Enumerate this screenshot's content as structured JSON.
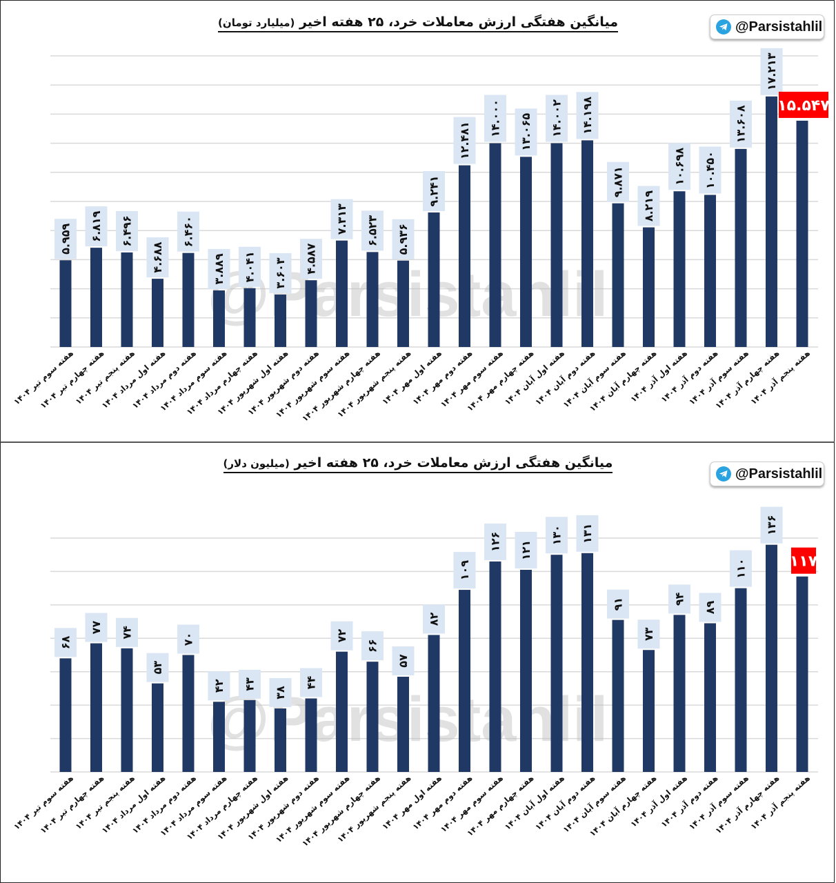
{
  "brand": {
    "handle": "@Parsistahlil",
    "icon": "telegram-icon",
    "bar_color": "#203864",
    "label_bg": "#dae6f3",
    "highlight_color": "#ff0000",
    "grid_color": "#d9d9d9"
  },
  "chart_data": [
    {
      "type": "bar",
      "title": "میانگین هفتگی ارزش معاملات خرد، ۲۵ هفته اخیر",
      "unit": "(میلیارد تومان)",
      "xlabel": "",
      "ylabel": "",
      "ylim": [
        0,
        20
      ],
      "grid_step": 2,
      "grid": true,
      "legend": "none",
      "highlight_last": true,
      "categories": [
        "هفته سوم تیر ۱۴۰۴",
        "هفته چهارم تیر ۱۴۰۴",
        "هفته پنجم تیر ۱۴۰۴",
        "هفته اول مرداد ۱۴۰۴",
        "هفته دوم مرداد ۱۴۰۴",
        "هفته سوم مرداد ۱۴۰۴",
        "هفته چهارم مرداد ۱۴۰۴",
        "هفته اول شهریور ۱۴۰۴",
        "هفته دوم شهریور ۱۴۰۴",
        "هفته سوم شهریور ۱۴۰۴",
        "هفته چهارم شهریور ۱۴۰۴",
        "هفته پنجم شهریور ۱۴۰۴",
        "هفته اول مهر ۱۴۰۴",
        "هفته دوم مهر ۱۴۰۴",
        "هفته سوم مهر ۱۴۰۴",
        "هفته چهارم مهر ۱۴۰۴",
        "هفته اول آبان ۱۴۰۴",
        "هفته دوم آبان ۱۴۰۴",
        "هفته سوم آبان ۱۴۰۴",
        "هفته چهارم آبان ۱۴۰۴",
        "هفته اول آذر ۱۴۰۴",
        "هفته دوم آذر ۱۴۰۴",
        "هفته سوم آذر ۱۴۰۴",
        "هفته چهارم آذر ۱۴۰۴",
        "هفته پنجم آذر ۱۴۰۴"
      ],
      "values": [
        5.959,
        6.819,
        6.496,
        4.688,
        6.46,
        3.889,
        4.041,
        3.603,
        4.587,
        7.313,
        6.523,
        5.936,
        9.241,
        12.481,
        14.0,
        13.065,
        14.002,
        14.198,
        9.871,
        8.219,
        10.698,
        10.45,
        13.608,
        17.213,
        15.547
      ],
      "data_labels": [
        "۵.۹۵۹",
        "۶.۸۱۹",
        "۶.۴۹۶",
        "۴.۶۸۸",
        "۶.۴۶۰",
        "۳.۸۸۹",
        "۴.۰۴۱",
        "۳.۶۰۳",
        "۴.۵۸۷",
        "۷.۳۱۳",
        "۶.۵۲۳",
        "۵.۹۳۶",
        "۹.۲۴۱",
        "۱۲.۴۸۱",
        "۱۴.۰۰۰",
        "۱۳.۰۶۵",
        "۱۴.۰۰۲",
        "۱۴.۱۹۸",
        "۹.۸۷۱",
        "۸.۲۱۹",
        "۱۰.۶۹۸",
        "۱۰.۴۵۰",
        "۱۳.۶۰۸",
        "۱۷.۲۱۳",
        "۱۵.۵۴۷"
      ]
    },
    {
      "type": "bar",
      "title": "میانگین هفتگی ارزش معاملات خرد، ۲۵ هفته اخیر",
      "unit": "(میلیون دلار)",
      "xlabel": "",
      "ylabel": "",
      "ylim": [
        0,
        140
      ],
      "grid_step": 20,
      "grid": true,
      "legend": "none",
      "highlight_last": true,
      "categories": [
        "هفته سوم تیر ۱۴۰۴",
        "هفته چهارم تیر ۱۴۰۴",
        "هفته پنجم تیر ۱۴۰۴",
        "هفته اول مرداد ۱۴۰۴",
        "هفته دوم مرداد ۱۴۰۴",
        "هفته سوم مرداد ۱۴۰۴",
        "هفته چهارم مرداد ۱۴۰۴",
        "هفته اول شهریور ۱۴۰۴",
        "هفته دوم شهریور ۱۴۰۴",
        "هفته سوم شهریور ۱۴۰۴",
        "هفته چهارم شهریور ۱۴۰۴",
        "هفته پنجم شهریور ۱۴۰۴",
        "هفته اول مهر ۱۴۰۴",
        "هفته دوم مهر ۱۴۰۴",
        "هفته سوم مهر ۱۴۰۴",
        "هفته چهارم مهر ۱۴۰۴",
        "هفته اول آبان ۱۴۰۴",
        "هفته دوم آبان ۱۴۰۴",
        "هفته سوم آبان ۱۴۰۴",
        "هفته چهارم آبان ۱۴۰۴",
        "هفته اول آذر ۱۴۰۴",
        "هفته دوم آذر ۱۴۰۴",
        "هفته سوم آذر ۱۴۰۴",
        "هفته چهارم آذر ۱۴۰۴",
        "هفته پنجم آذر ۱۴۰۴"
      ],
      "values": [
        68,
        77,
        74,
        53,
        70,
        42,
        43,
        38,
        44,
        72,
        66,
        57,
        82,
        109,
        126,
        121,
        130,
        131,
        91,
        73,
        94,
        89,
        110,
        136,
        117
      ],
      "data_labels": [
        "۶۸",
        "۷۷",
        "۷۴",
        "۵۳",
        "۷۰",
        "۴۲",
        "۴۳",
        "۳۸",
        "۴۴",
        "۷۲",
        "۶۶",
        "۵۷",
        "۸۲",
        "۱۰۹",
        "۱۲۶",
        "۱۲۱",
        "۱۳۰",
        "۱۳۱",
        "۹۱",
        "۷۳",
        "۹۴",
        "۸۹",
        "۱۱۰",
        "۱۳۶",
        "۱۱۷"
      ]
    }
  ]
}
